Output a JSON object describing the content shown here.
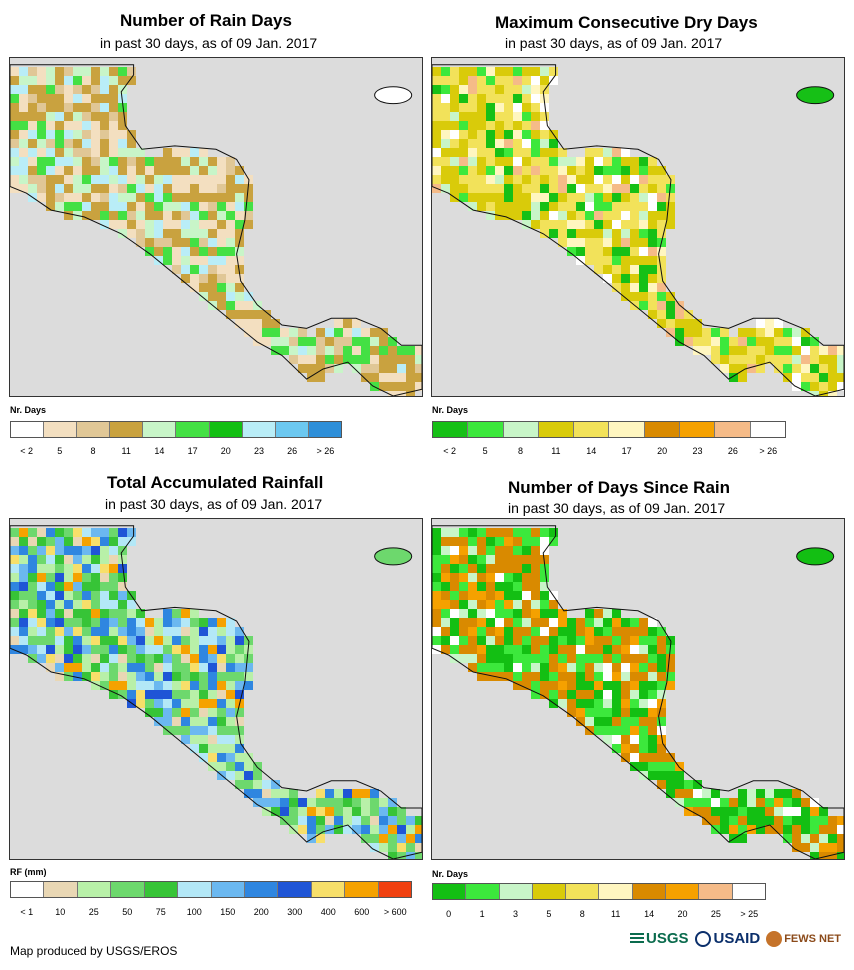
{
  "panels": [
    {
      "key": "rain_days",
      "title": "Number of Rain Days",
      "subtitle": "in past 30 days, as of 09 Jan. 2017",
      "legend_label": "Nr. Days",
      "colors": [
        "#ffffff",
        "#f3dfc0",
        "#e0c796",
        "#c9a23f",
        "#c8f5c8",
        "#44e044",
        "#13bf13",
        "#b9edf7",
        "#6cc8f0",
        "#2e8fd9"
      ],
      "ticks": [
        "< 2",
        "5",
        "8",
        "11",
        "14",
        "17",
        "20",
        "23",
        "26",
        "> 26"
      ]
    },
    {
      "key": "dry_days",
      "title": "Maximum Consecutive Dry Days",
      "subtitle": "in past 30 days, as of 09 Jan. 2017",
      "legend_label": "Nr. Days",
      "colors": [
        "#16c016",
        "#3ce83c",
        "#c8f5c8",
        "#d9cb0a",
        "#f2e25a",
        "#fff6c0",
        "#d98a00",
        "#f5a100",
        "#f5bb88",
        "#ffffff"
      ],
      "ticks": [
        "< 2",
        "5",
        "8",
        "11",
        "14",
        "17",
        "20",
        "23",
        "26",
        "> 26"
      ]
    },
    {
      "key": "rainfall",
      "title": "Total Accumulated Rainfall",
      "subtitle": "in past 30 days, as of 09 Jan. 2017",
      "legend_label": "RF (mm)",
      "colors": [
        "#ffffff",
        "#e9d7b4",
        "#b8f0a8",
        "#6dd86d",
        "#37c437",
        "#b3e8f7",
        "#6bb8f0",
        "#2f86e0",
        "#1f55d6",
        "#f7df6a",
        "#f5a200",
        "#f04010"
      ],
      "ticks": [
        "< 1",
        "10",
        "25",
        "50",
        "75",
        "100",
        "150",
        "200",
        "300",
        "400",
        "600",
        "> 600"
      ]
    },
    {
      "key": "days_since",
      "title": "Number of Days Since Rain",
      "subtitle": "in past 30 days, as of 09 Jan. 2017",
      "legend_label": "Nr. Days",
      "colors": [
        "#13bf13",
        "#3ce83c",
        "#c8f5c8",
        "#d9cb0a",
        "#f2e25a",
        "#fff6c0",
        "#d98a00",
        "#f5a100",
        "#f5bb88",
        "#ffffff"
      ],
      "ticks": [
        "0",
        "1",
        "3",
        "5",
        "8",
        "11",
        "14",
        "20",
        "25",
        "> 25"
      ]
    }
  ],
  "credit": "Map produced by USGS/EROS",
  "logos": [
    "USGS",
    "USAID",
    "FEWS NET"
  ]
}
